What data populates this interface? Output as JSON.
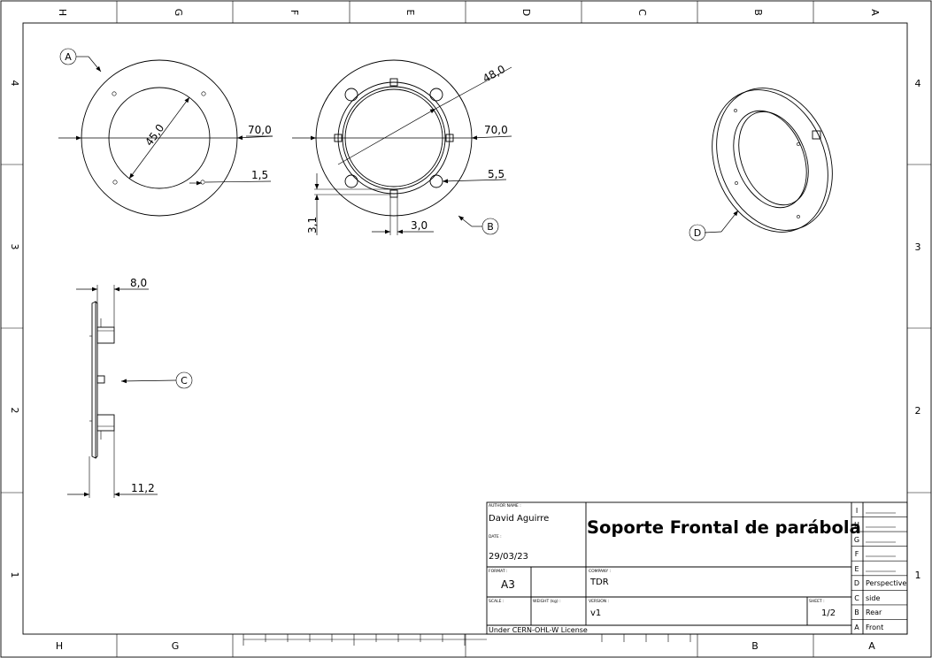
{
  "frame": {
    "columns": [
      "H",
      "G",
      "F",
      "E",
      "D",
      "C",
      "B",
      "A"
    ],
    "rows": [
      "4",
      "3",
      "2",
      "1"
    ]
  },
  "views": {
    "front": {
      "label": "A"
    },
    "rear": {
      "label": "B"
    },
    "side": {
      "label": "C"
    },
    "perspective": {
      "label": "D"
    }
  },
  "dimensions": {
    "front_diameter": "45,0",
    "front_outer": "70,0",
    "front_hole": "1,5",
    "rear_diameter": "48,0",
    "rear_outer": "70,0",
    "rear_hole": "5,5",
    "rear_slot_height": "3,1",
    "rear_slot_width": "3,0",
    "side_depth": "8,0",
    "side_total": "11,2"
  },
  "title_block": {
    "author_label": "AUTHOR NAME :",
    "author": "David Aguirre",
    "date_label": "DATE :",
    "date": "29/03/23",
    "title": "Soporte Frontal de parábola",
    "format_label": "FORMAT :",
    "format": "A3",
    "company_label": "COMPANY :",
    "company": "TDR",
    "scale_label": "SCALE :",
    "weight_label": "WEIGHT (kg) :",
    "version_label": "VERSION :",
    "version": "v1",
    "sheet_label": "SHEET :",
    "sheet": "1/2",
    "license": "Under CERN-OHL-W License"
  },
  "revisions": [
    {
      "letter": "I",
      "text": ""
    },
    {
      "letter": "H",
      "text": ""
    },
    {
      "letter": "G",
      "text": ""
    },
    {
      "letter": "F",
      "text": ""
    },
    {
      "letter": "E",
      "text": ""
    },
    {
      "letter": "D",
      "text": "Perspective"
    },
    {
      "letter": "C",
      "text": "side"
    },
    {
      "letter": "B",
      "text": "Rear"
    },
    {
      "letter": "A",
      "text": "Front"
    }
  ]
}
